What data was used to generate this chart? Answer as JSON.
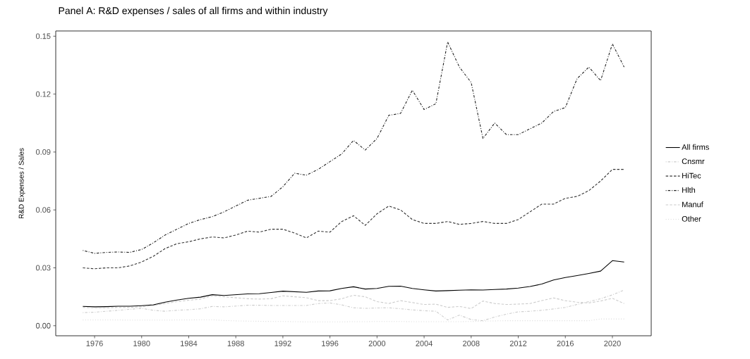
{
  "chart_data": {
    "type": "line",
    "title": "Panel A: R&D expenses / sales of all firms and within industry",
    "ylabel": "R&D Expenses / Sales",
    "x": [
      1975,
      1976,
      1977,
      1978,
      1979,
      1980,
      1981,
      1982,
      1983,
      1984,
      1985,
      1986,
      1987,
      1988,
      1989,
      1990,
      1991,
      1992,
      1993,
      1994,
      1995,
      1996,
      1997,
      1998,
      1999,
      2000,
      2001,
      2002,
      2003,
      2004,
      2005,
      2006,
      2007,
      2008,
      2009,
      2010,
      2011,
      2012,
      2013,
      2014,
      2015,
      2016,
      2017,
      2018,
      2019,
      2020,
      2021
    ],
    "xlim": [
      1972.7,
      2023.3
    ],
    "xticks": [
      1976,
      1980,
      1984,
      1988,
      1992,
      1996,
      2000,
      2004,
      2008,
      2012,
      2016,
      2020
    ],
    "ylim": [
      -0.0052,
      0.1527
    ],
    "yticks": [
      {
        "value": 0,
        "label": "0.00"
      },
      {
        "value": 0.03,
        "label": "0.03"
      },
      {
        "value": 0.06,
        "label": "0.06"
      },
      {
        "value": 0.09,
        "label": "0.09"
      },
      {
        "value": 0.12,
        "label": "0.12"
      },
      {
        "value": 0.15,
        "label": "0.15"
      }
    ],
    "legend": "right",
    "grid": false,
    "series": [
      {
        "name": "All firms",
        "color": "#000000",
        "line_style": "solid",
        "values": [
          0.01,
          0.0098,
          0.0099,
          0.0101,
          0.0101,
          0.0104,
          0.0108,
          0.0122,
          0.0133,
          0.0142,
          0.0148,
          0.0161,
          0.0157,
          0.0161,
          0.0165,
          0.0166,
          0.0172,
          0.0179,
          0.0176,
          0.0173,
          0.018,
          0.0181,
          0.0193,
          0.0202,
          0.019,
          0.0193,
          0.0204,
          0.0205,
          0.0193,
          0.0186,
          0.018,
          0.0182,
          0.0184,
          0.0186,
          0.0185,
          0.0188,
          0.019,
          0.0195,
          0.0203,
          0.0216,
          0.0237,
          0.025,
          0.026,
          0.0271,
          0.0283,
          0.0337,
          0.033
        ]
      },
      {
        "name": "Cnsmr",
        "color": "#cccccc",
        "line_style": "dashdot",
        "values": [
          0.0068,
          0.007,
          0.0075,
          0.008,
          0.0085,
          0.009,
          0.008,
          0.0075,
          0.008,
          0.0083,
          0.0088,
          0.01,
          0.0098,
          0.0102,
          0.0106,
          0.0106,
          0.0105,
          0.0105,
          0.0105,
          0.0105,
          0.0115,
          0.0118,
          0.0108,
          0.0093,
          0.009,
          0.0092,
          0.0093,
          0.0088,
          0.0082,
          0.0078,
          0.0075,
          0.003,
          0.0055,
          0.0032,
          0.0026,
          0.0045,
          0.006,
          0.0072,
          0.0075,
          0.008,
          0.0087,
          0.0095,
          0.011,
          0.0125,
          0.014,
          0.016,
          0.0185
        ]
      },
      {
        "name": "HiTec",
        "color": "#333333",
        "line_style": "dashed",
        "values": [
          0.03,
          0.0295,
          0.03,
          0.03,
          0.031,
          0.033,
          0.036,
          0.04,
          0.0425,
          0.0435,
          0.045,
          0.046,
          0.0455,
          0.047,
          0.049,
          0.0485,
          0.05,
          0.05,
          0.048,
          0.0455,
          0.049,
          0.0485,
          0.054,
          0.057,
          0.052,
          0.058,
          0.062,
          0.06,
          0.055,
          0.053,
          0.053,
          0.054,
          0.0525,
          0.053,
          0.054,
          0.053,
          0.053,
          0.055,
          0.059,
          0.063,
          0.063,
          0.066,
          0.067,
          0.07,
          0.075,
          0.081,
          0.081
        ]
      },
      {
        "name": "Hlth",
        "color": "#222222",
        "line_style": "dashdot",
        "values": [
          0.039,
          0.0375,
          0.038,
          0.0382,
          0.038,
          0.0395,
          0.043,
          0.047,
          0.05,
          0.053,
          0.055,
          0.0565,
          0.059,
          0.062,
          0.065,
          0.066,
          0.067,
          0.072,
          0.079,
          0.078,
          0.081,
          0.085,
          0.089,
          0.096,
          0.091,
          0.097,
          0.109,
          0.11,
          0.122,
          0.112,
          0.115,
          0.147,
          0.134,
          0.126,
          0.097,
          0.105,
          0.099,
          0.099,
          0.102,
          0.105,
          0.111,
          0.113,
          0.128,
          0.134,
          0.127,
          0.146,
          0.134
        ]
      },
      {
        "name": "Manuf",
        "color": "#cccccc",
        "line_style": "dashed",
        "values": [
          0.0095,
          0.0093,
          0.0093,
          0.0095,
          0.0095,
          0.0098,
          0.0105,
          0.0115,
          0.0125,
          0.0132,
          0.0138,
          0.0155,
          0.015,
          0.0145,
          0.014,
          0.0138,
          0.014,
          0.0155,
          0.015,
          0.0145,
          0.013,
          0.013,
          0.014,
          0.0158,
          0.015,
          0.0125,
          0.0115,
          0.013,
          0.012,
          0.011,
          0.0112,
          0.0095,
          0.01,
          0.0089,
          0.0128,
          0.0115,
          0.011,
          0.0112,
          0.0115,
          0.013,
          0.0144,
          0.013,
          0.0122,
          0.0118,
          0.0128,
          0.0142,
          0.0115
        ]
      },
      {
        "name": "Other",
        "color": "#d9d9d9",
        "line_style": "dotted",
        "values": [
          0.003,
          0.003,
          0.003,
          0.003,
          0.0029,
          0.0029,
          0.0029,
          0.0029,
          0.003,
          0.003,
          0.0031,
          0.0031,
          0.0027,
          0.0025,
          0.0024,
          0.0023,
          0.0022,
          0.0022,
          0.0021,
          0.002,
          0.002,
          0.002,
          0.002,
          0.0021,
          0.0021,
          0.0022,
          0.0022,
          0.0022,
          0.0021,
          0.0021,
          0.0021,
          0.0021,
          0.0021,
          0.0022,
          0.0024,
          0.0025,
          0.0026,
          0.0026,
          0.0026,
          0.0026,
          0.0026,
          0.0026,
          0.0026,
          0.0026,
          0.0035,
          0.0035,
          0.0035
        ]
      }
    ]
  }
}
